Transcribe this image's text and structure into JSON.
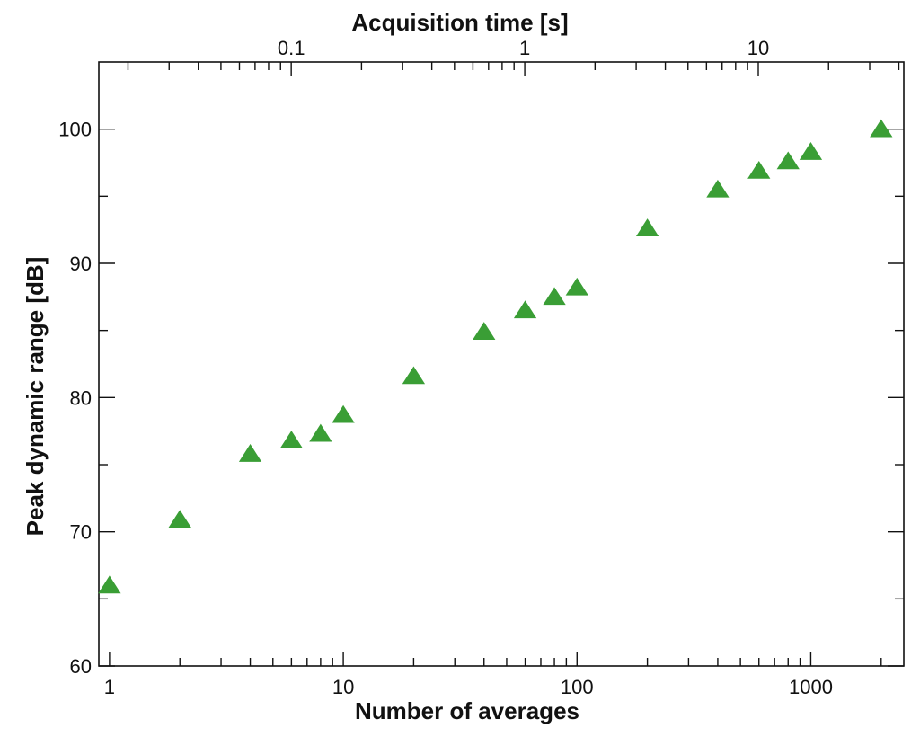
{
  "chart_data": {
    "type": "scatter",
    "title": "",
    "xlabel": "Number of averages",
    "x2label": "Acquisition time [s]",
    "ylabel": "Peak dynamic range [dB]",
    "x_scale": "log",
    "x2_scale": "log",
    "xlim": [
      0.9,
      2500
    ],
    "x2lim": [
      0.015,
      42
    ],
    "ylim": [
      60,
      105
    ],
    "y_ticks": [
      60,
      70,
      80,
      90,
      100
    ],
    "y_minor_ticks": [
      65,
      75,
      85,
      95
    ],
    "x_ticks": [
      1,
      10,
      100,
      1000
    ],
    "x_tick_labels": [
      "1",
      "10",
      "100",
      "1000"
    ],
    "x2_ticks": [
      0.1,
      1,
      10
    ],
    "x2_tick_labels": [
      "0.1",
      "1",
      "10"
    ],
    "grid": false,
    "marker": "triangle-up",
    "marker_color": "#3a9e35",
    "series": [
      {
        "x": [
          1,
          2,
          4,
          6,
          8,
          10,
          20,
          40,
          60,
          80,
          100,
          200,
          400,
          600,
          800,
          1000,
          2000
        ],
        "y": [
          66.0,
          70.9,
          75.8,
          76.8,
          77.3,
          78.7,
          81.6,
          84.9,
          86.5,
          87.5,
          88.2,
          92.6,
          95.5,
          96.9,
          97.6,
          98.3,
          100.0
        ]
      }
    ]
  }
}
